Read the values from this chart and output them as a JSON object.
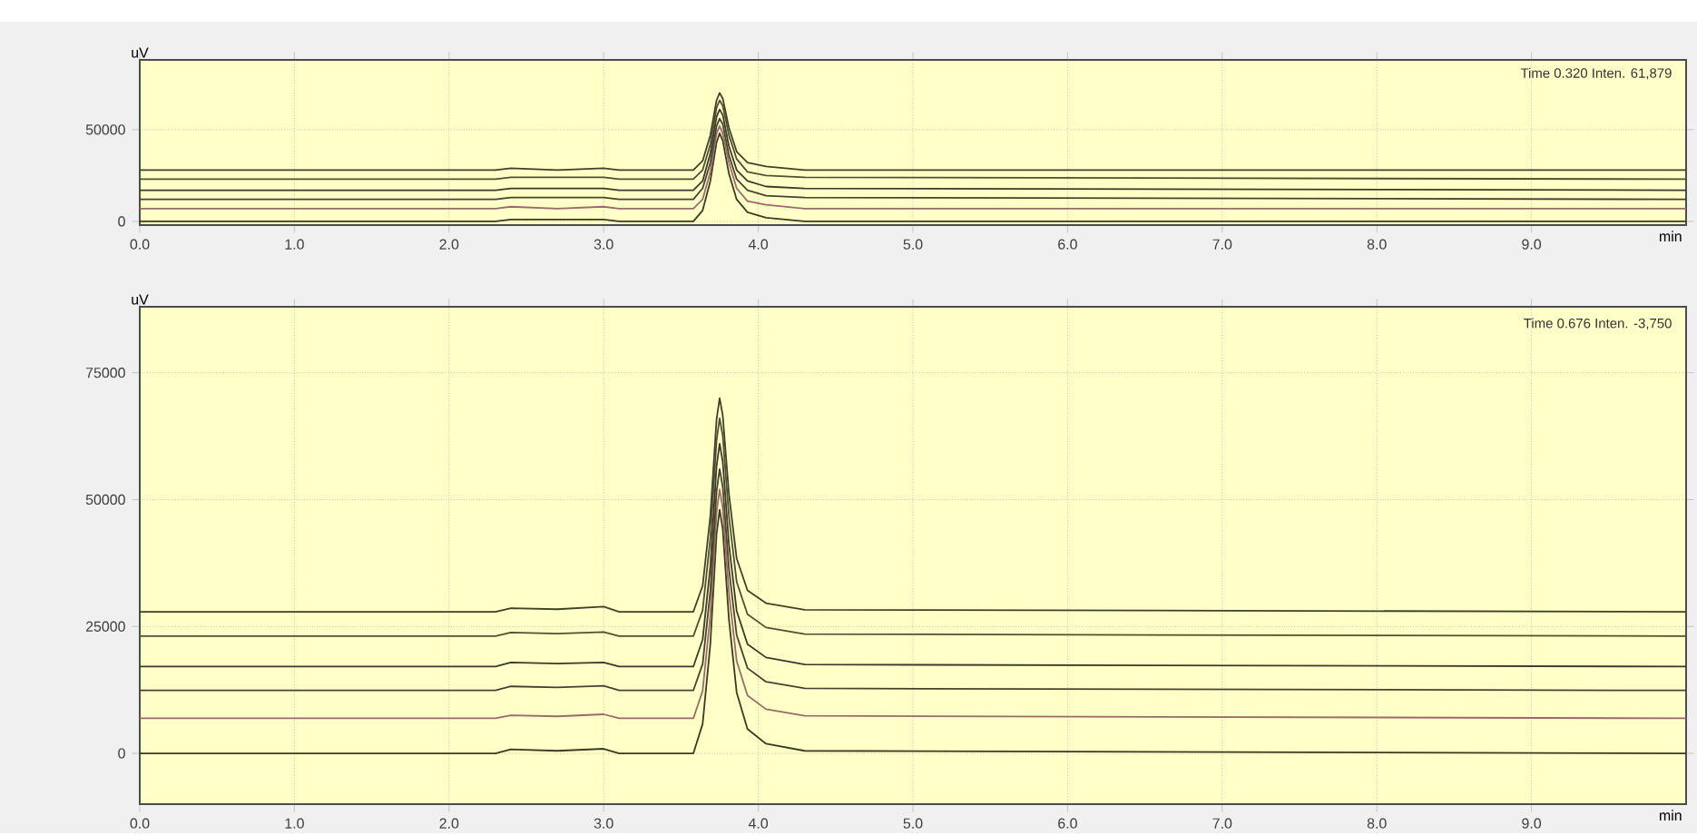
{
  "chart_data": [
    {
      "type": "line",
      "xlabel": "min",
      "ylabel": "uV",
      "annotations": [
        "Time 0.320 Inten. 61,879"
      ],
      "x": [
        0,
        2.3,
        2.4,
        2.7,
        3.0,
        3.1,
        3.58,
        3.64,
        3.69,
        3.73,
        3.75,
        3.77,
        3.81,
        3.86,
        3.93,
        4.05,
        4.3,
        10
      ],
      "series": [
        {
          "color": "#3b3b1f",
          "values": [
            0,
            0,
            1000,
            1000,
            1000,
            0,
            0,
            6000,
            22000,
            43000,
            48000,
            44000,
            26000,
            12000,
            5000,
            2000,
            0,
            0
          ]
        },
        {
          "color": "#9a6a6a",
          "values": [
            7000,
            7000,
            8000,
            7000,
            8000,
            7000,
            7000,
            12000,
            27000,
            48000,
            52000,
            48000,
            32000,
            18000,
            11000,
            9000,
            7000,
            7000
          ]
        },
        {
          "color": "#4a4030",
          "values": [
            12000,
            12000,
            13000,
            13000,
            13000,
            12000,
            12000,
            18000,
            32000,
            52000,
            56000,
            53000,
            36000,
            23000,
            17000,
            14000,
            13000,
            12000
          ]
        },
        {
          "color": "#3a3a28",
          "values": [
            17000,
            17000,
            18000,
            18000,
            18000,
            17000,
            17000,
            22000,
            37000,
            57000,
            61000,
            58000,
            41000,
            28000,
            22000,
            19000,
            18000,
            17000
          ]
        },
        {
          "color": "#505030",
          "values": [
            23000,
            23000,
            24000,
            24000,
            24000,
            23000,
            23000,
            28000,
            42000,
            62000,
            66000,
            63000,
            47000,
            34000,
            27000,
            25000,
            24000,
            23000
          ]
        },
        {
          "color": "#404028",
          "values": [
            28000,
            28000,
            29000,
            28000,
            29000,
            28000,
            28000,
            33000,
            47000,
            66000,
            70000,
            67000,
            51000,
            38000,
            32000,
            30000,
            28000,
            28000
          ]
        }
      ],
      "xlim": [
        0,
        10
      ],
      "ylim": [
        -2000,
        88000
      ],
      "xticks": [
        {
          "value": 0,
          "label": "0.0"
        },
        {
          "value": 1,
          "label": "1.0"
        },
        {
          "value": 2,
          "label": "2.0"
        },
        {
          "value": 3,
          "label": "3.0"
        },
        {
          "value": 4,
          "label": "4.0"
        },
        {
          "value": 5,
          "label": "5.0"
        },
        {
          "value": 6,
          "label": "6.0"
        },
        {
          "value": 7,
          "label": "7.0"
        },
        {
          "value": 8,
          "label": "8.0"
        },
        {
          "value": 9,
          "label": "9.0"
        }
      ],
      "yticks": [
        0,
        50000
      ],
      "grid": true
    },
    {
      "type": "line",
      "xlabel": "min",
      "ylabel": "uV",
      "annotations": [
        "Time 0.676 Inten. -3,750"
      ],
      "x": [
        0,
        2.3,
        2.4,
        2.7,
        3.0,
        3.1,
        3.58,
        3.64,
        3.69,
        3.73,
        3.75,
        3.77,
        3.81,
        3.86,
        3.93,
        4.05,
        4.3,
        10
      ],
      "series": [
        {
          "color": "#3b3b1f",
          "values": [
            0,
            0,
            800,
            500,
            900,
            0,
            0,
            5800,
            21600,
            43200,
            48000,
            44200,
            26400,
            12000,
            4800,
            1900,
            500,
            0
          ]
        },
        {
          "color": "#9a6a6a",
          "values": [
            6900,
            6900,
            7500,
            7300,
            7700,
            6900,
            6900,
            12300,
            27200,
            47500,
            52000,
            48400,
            31700,
            18200,
            11400,
            8700,
            7400,
            6900
          ]
        },
        {
          "color": "#4a4030",
          "values": [
            12400,
            12400,
            13200,
            13000,
            13300,
            12400,
            12400,
            17600,
            32000,
            51600,
            56000,
            52500,
            36400,
            23300,
            16800,
            14100,
            12800,
            12400
          ]
        },
        {
          "color": "#3a3a28",
          "values": [
            17100,
            17100,
            17900,
            17700,
            17900,
            17100,
            17100,
            22400,
            36900,
            56600,
            61000,
            57500,
            41200,
            28100,
            21500,
            18900,
            17500,
            17100
          ]
        },
        {
          "color": "#505030",
          "values": [
            23100,
            23100,
            23800,
            23600,
            23900,
            23100,
            23100,
            28200,
            42400,
            61700,
            66000,
            62600,
            46700,
            33800,
            27400,
            24800,
            23500,
            23100
          ]
        },
        {
          "color": "#404028",
          "values": [
            27900,
            27900,
            28600,
            28400,
            28900,
            27900,
            27900,
            33000,
            46800,
            65800,
            70000,
            66600,
            51100,
            38400,
            32100,
            29600,
            28300,
            27900
          ]
        }
      ],
      "xlim": [
        0,
        10
      ],
      "ylim": [
        -10000,
        88000
      ],
      "xticks": [
        {
          "value": 0,
          "label": "0.0"
        },
        {
          "value": 1,
          "label": "1.0"
        },
        {
          "value": 2,
          "label": "2.0"
        },
        {
          "value": 3,
          "label": "3.0"
        },
        {
          "value": 4,
          "label": "4.0"
        },
        {
          "value": 5,
          "label": "5.0"
        },
        {
          "value": 6,
          "label": "6.0"
        },
        {
          "value": 7,
          "label": "7.0"
        },
        {
          "value": 8,
          "label": "8.0"
        },
        {
          "value": 9,
          "label": "9.0"
        }
      ],
      "yticks": [
        0,
        25000,
        50000,
        75000
      ],
      "grid": true
    }
  ]
}
